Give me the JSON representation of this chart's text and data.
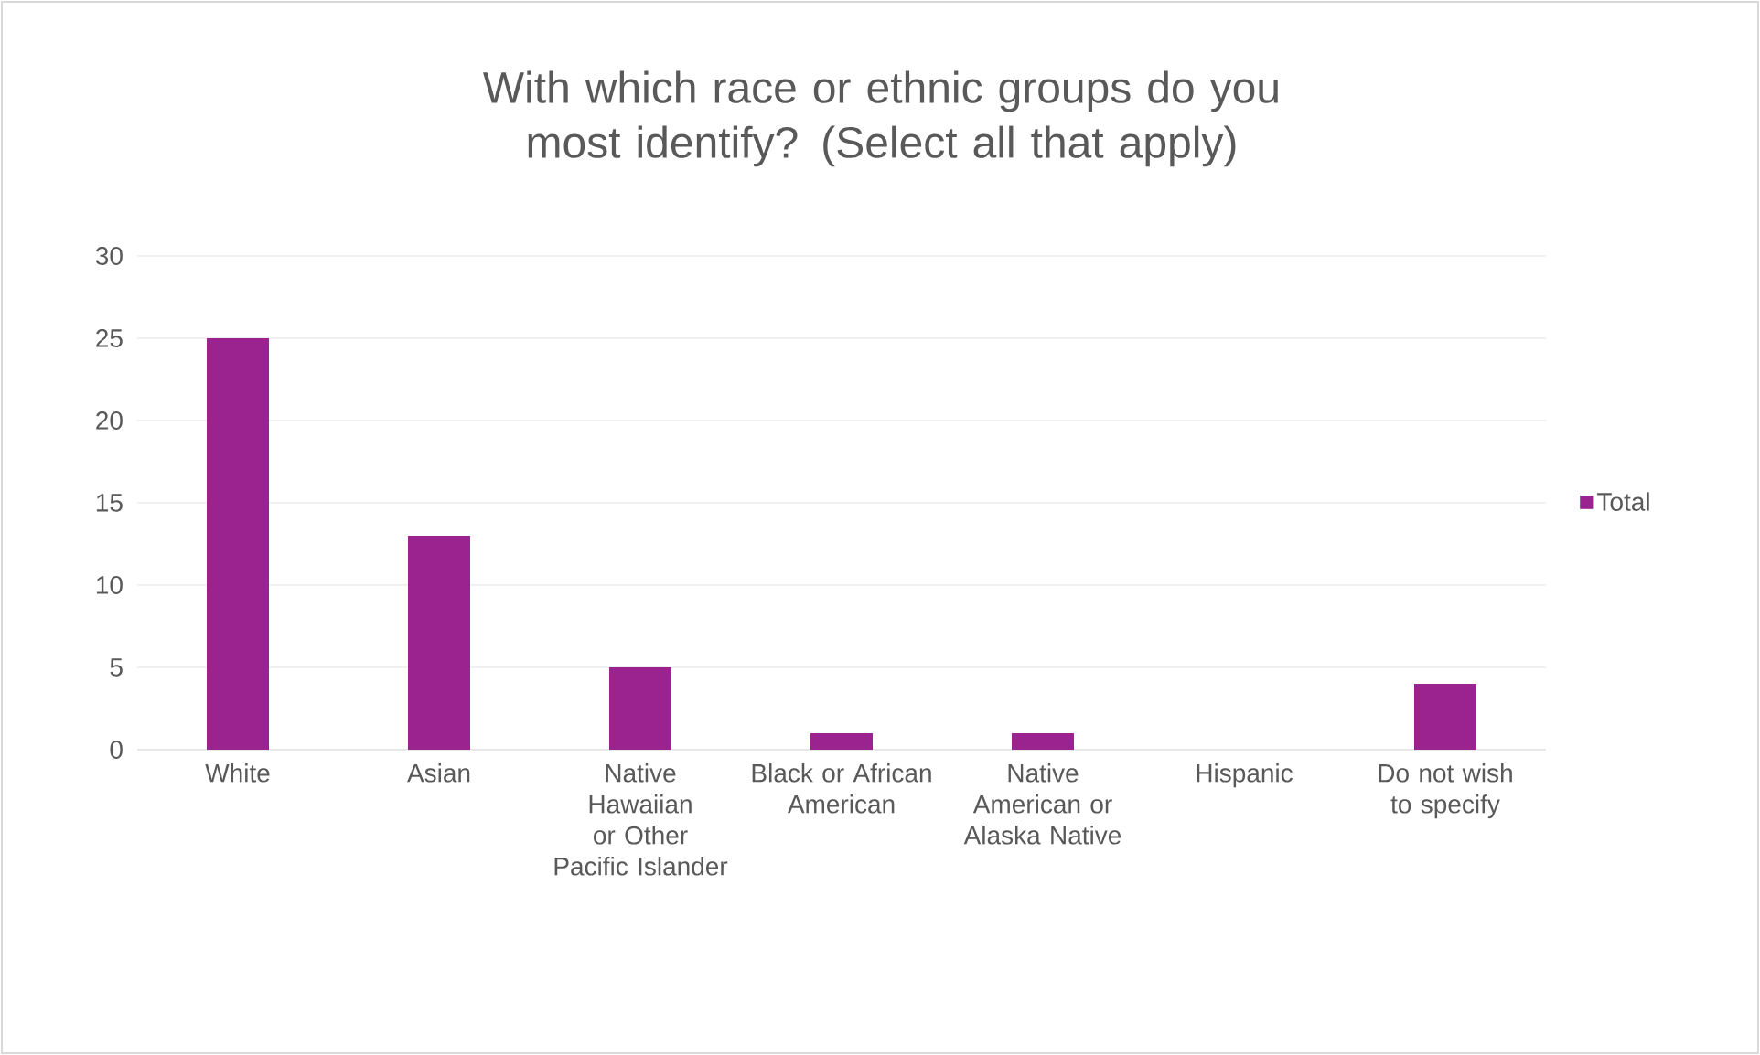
{
  "chart_data": {
    "type": "bar",
    "title": "With which race or ethnic groups do you most identify? (Select all that apply)",
    "categories": [
      "White",
      "Asian",
      "Native Hawaiian or Other Pacific Islander",
      "Black or African American",
      "Native American or Alaska Native",
      "Hispanic",
      "Do not wish to specify"
    ],
    "series": [
      {
        "name": "Total",
        "color": "#9b2390",
        "values": [
          25,
          13,
          5,
          1,
          1,
          0,
          4
        ]
      }
    ],
    "ylim": [
      0,
      30
    ],
    "yticks": [
      0,
      5,
      10,
      15,
      20,
      25,
      30
    ],
    "grid": "y",
    "legend": "right"
  }
}
